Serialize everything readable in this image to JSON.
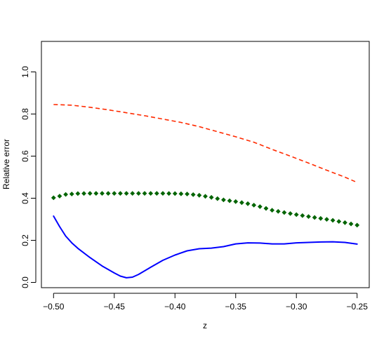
{
  "chart_data": {
    "type": "line",
    "title": "",
    "xlabel": "z",
    "ylabel": "Relative error",
    "xlim": [
      -0.51,
      -0.24
    ],
    "ylim": [
      -0.025,
      1.145
    ],
    "x_ticks": [
      -0.5,
      -0.45,
      -0.4,
      -0.35,
      -0.3,
      -0.25
    ],
    "x_tick_labels": [
      "−0.50",
      "−0.45",
      "−0.40",
      "−0.35",
      "−0.30",
      "−0.25"
    ],
    "y_ticks": [
      0.0,
      0.2,
      0.4,
      0.6,
      0.8,
      1.0
    ],
    "y_tick_labels": [
      "0.0",
      "0.2",
      "0.4",
      "0.6",
      "0.8",
      "1.0"
    ],
    "grid": false,
    "legend": "none",
    "series": [
      {
        "style": "dashed",
        "color": "#ff2a00",
        "x": [
          -0.5,
          -0.485,
          -0.47,
          -0.455,
          -0.44,
          -0.425,
          -0.41,
          -0.395,
          -0.38,
          -0.365,
          -0.35,
          -0.335,
          -0.32,
          -0.305,
          -0.29,
          -0.275,
          -0.26,
          -0.25
        ],
        "y": [
          0.845,
          0.842,
          0.832,
          0.82,
          0.806,
          0.792,
          0.776,
          0.76,
          0.74,
          0.716,
          0.692,
          0.666,
          0.632,
          0.6,
          0.567,
          0.533,
          0.5,
          0.475
        ]
      },
      {
        "style": "dotted",
        "color": "#006400",
        "x": [
          -0.5,
          -0.49,
          -0.48,
          -0.47,
          -0.46,
          -0.45,
          -0.44,
          -0.43,
          -0.42,
          -0.41,
          -0.4,
          -0.39,
          -0.38,
          -0.37,
          -0.36,
          -0.35,
          -0.34,
          -0.33,
          -0.32,
          -0.31,
          -0.3,
          -0.29,
          -0.28,
          -0.27,
          -0.26,
          -0.25
        ],
        "y": [
          0.402,
          0.418,
          0.422,
          0.423,
          0.423,
          0.423,
          0.423,
          0.423,
          0.423,
          0.423,
          0.422,
          0.42,
          0.414,
          0.404,
          0.392,
          0.384,
          0.374,
          0.36,
          0.343,
          0.332,
          0.322,
          0.313,
          0.304,
          0.295,
          0.284,
          0.272
        ]
      },
      {
        "style": "solid",
        "color": "#0000ff",
        "x": [
          -0.5,
          -0.495,
          -0.49,
          -0.485,
          -0.48,
          -0.47,
          -0.46,
          -0.45,
          -0.445,
          -0.44,
          -0.435,
          -0.43,
          -0.42,
          -0.41,
          -0.4,
          -0.39,
          -0.38,
          -0.37,
          -0.36,
          -0.35,
          -0.34,
          -0.33,
          -0.32,
          -0.31,
          -0.3,
          -0.29,
          -0.28,
          -0.27,
          -0.26,
          -0.25
        ],
        "y": [
          0.315,
          0.265,
          0.22,
          0.188,
          0.162,
          0.118,
          0.078,
          0.045,
          0.03,
          0.022,
          0.025,
          0.038,
          0.072,
          0.105,
          0.13,
          0.15,
          0.16,
          0.163,
          0.17,
          0.183,
          0.188,
          0.187,
          0.183,
          0.183,
          0.188,
          0.19,
          0.192,
          0.193,
          0.19,
          0.182
        ]
      }
    ]
  }
}
